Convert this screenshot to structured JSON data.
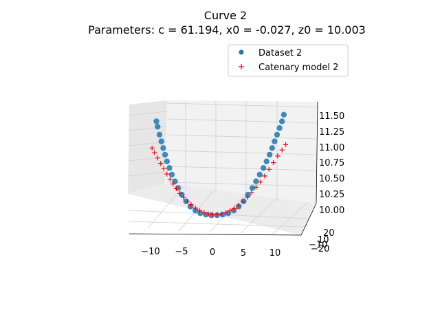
{
  "chart_data": {
    "type": "scatter",
    "title": "Curve 2",
    "subtitle": "Parameters: c = 61.194, x0 = -0.027, z0 = 10.003",
    "xlabel": "",
    "ylabel": "",
    "zlabel": "",
    "x_ticks": [
      "−10",
      "−5",
      "0",
      "5",
      "10"
    ],
    "y_ticks": [
      "20",
      "10",
      "−10",
      "−20"
    ],
    "z_ticks": [
      "10.00",
      "10.25",
      "10.50",
      "10.75",
      "11.00",
      "11.25",
      "11.50"
    ],
    "xlim": [
      -13,
      13
    ],
    "zlim": [
      9.95,
      11.55
    ],
    "grid": true,
    "legend_position": "top-right",
    "legend": [
      "Dataset 2",
      "Catenary model 2"
    ],
    "series_colors": [
      "#1f77b4",
      "#ff0000"
    ],
    "parameters": {
      "c": 61.194,
      "x0": -0.027,
      "z0": 10.003
    },
    "series": [
      {
        "name": "Dataset 2",
        "marker": "circle",
        "points": [
          [
            -9.5,
            11.4
          ],
          [
            -9.3,
            11.32
          ],
          [
            -9.0,
            11.2
          ],
          [
            -8.7,
            11.1
          ],
          [
            -8.4,
            11.0
          ],
          [
            -8.1,
            10.9
          ],
          [
            -7.8,
            10.8
          ],
          [
            -7.4,
            10.7
          ],
          [
            -7.0,
            10.6
          ],
          [
            -6.5,
            10.5
          ],
          [
            -6.0,
            10.4
          ],
          [
            -5.4,
            10.3
          ],
          [
            -4.7,
            10.2
          ],
          [
            -4.0,
            10.12
          ],
          [
            -3.2,
            10.06
          ],
          [
            -2.4,
            10.02
          ],
          [
            -1.5,
            10.0
          ],
          [
            -0.6,
            9.99
          ],
          [
            0.3,
            9.99
          ],
          [
            1.2,
            10.0
          ],
          [
            2.1,
            10.02
          ],
          [
            3.0,
            10.06
          ],
          [
            3.8,
            10.12
          ],
          [
            4.6,
            10.2
          ],
          [
            5.3,
            10.3
          ],
          [
            6.0,
            10.4
          ],
          [
            6.6,
            10.5
          ],
          [
            7.2,
            10.6
          ],
          [
            7.8,
            10.7
          ],
          [
            8.3,
            10.8
          ],
          [
            8.8,
            10.9
          ],
          [
            9.2,
            11.0
          ],
          [
            9.6,
            11.1
          ],
          [
            10.0,
            11.2
          ],
          [
            10.4,
            11.3
          ],
          [
            10.8,
            11.4
          ],
          [
            11.1,
            11.5
          ]
        ]
      },
      {
        "name": "Catenary model 2",
        "marker": "plus",
        "points": [
          [
            -10.2,
            11.0
          ],
          [
            -9.8,
            10.93
          ],
          [
            -9.3,
            10.85
          ],
          [
            -8.8,
            10.77
          ],
          [
            -8.3,
            10.69
          ],
          [
            -7.8,
            10.61
          ],
          [
            -7.3,
            10.53
          ],
          [
            -6.8,
            10.46
          ],
          [
            -6.3,
            10.39
          ],
          [
            -5.7,
            10.32
          ],
          [
            -5.1,
            10.26
          ],
          [
            -4.5,
            10.2
          ],
          [
            -3.9,
            10.15
          ],
          [
            -3.2,
            10.1
          ],
          [
            -2.5,
            10.06
          ],
          [
            -1.8,
            10.03
          ],
          [
            -1.1,
            10.01
          ],
          [
            -0.4,
            10.0
          ],
          [
            0.3,
            10.0
          ],
          [
            1.0,
            10.01
          ],
          [
            1.7,
            10.03
          ],
          [
            2.4,
            10.06
          ],
          [
            3.1,
            10.09
          ],
          [
            3.8,
            10.14
          ],
          [
            4.5,
            10.2
          ],
          [
            5.2,
            10.26
          ],
          [
            5.9,
            10.33
          ],
          [
            6.6,
            10.41
          ],
          [
            7.3,
            10.49
          ],
          [
            8.0,
            10.58
          ],
          [
            8.7,
            10.68
          ],
          [
            9.4,
            10.78
          ],
          [
            10.1,
            10.88
          ],
          [
            10.8,
            10.97
          ],
          [
            11.4,
            11.05
          ]
        ]
      }
    ]
  }
}
